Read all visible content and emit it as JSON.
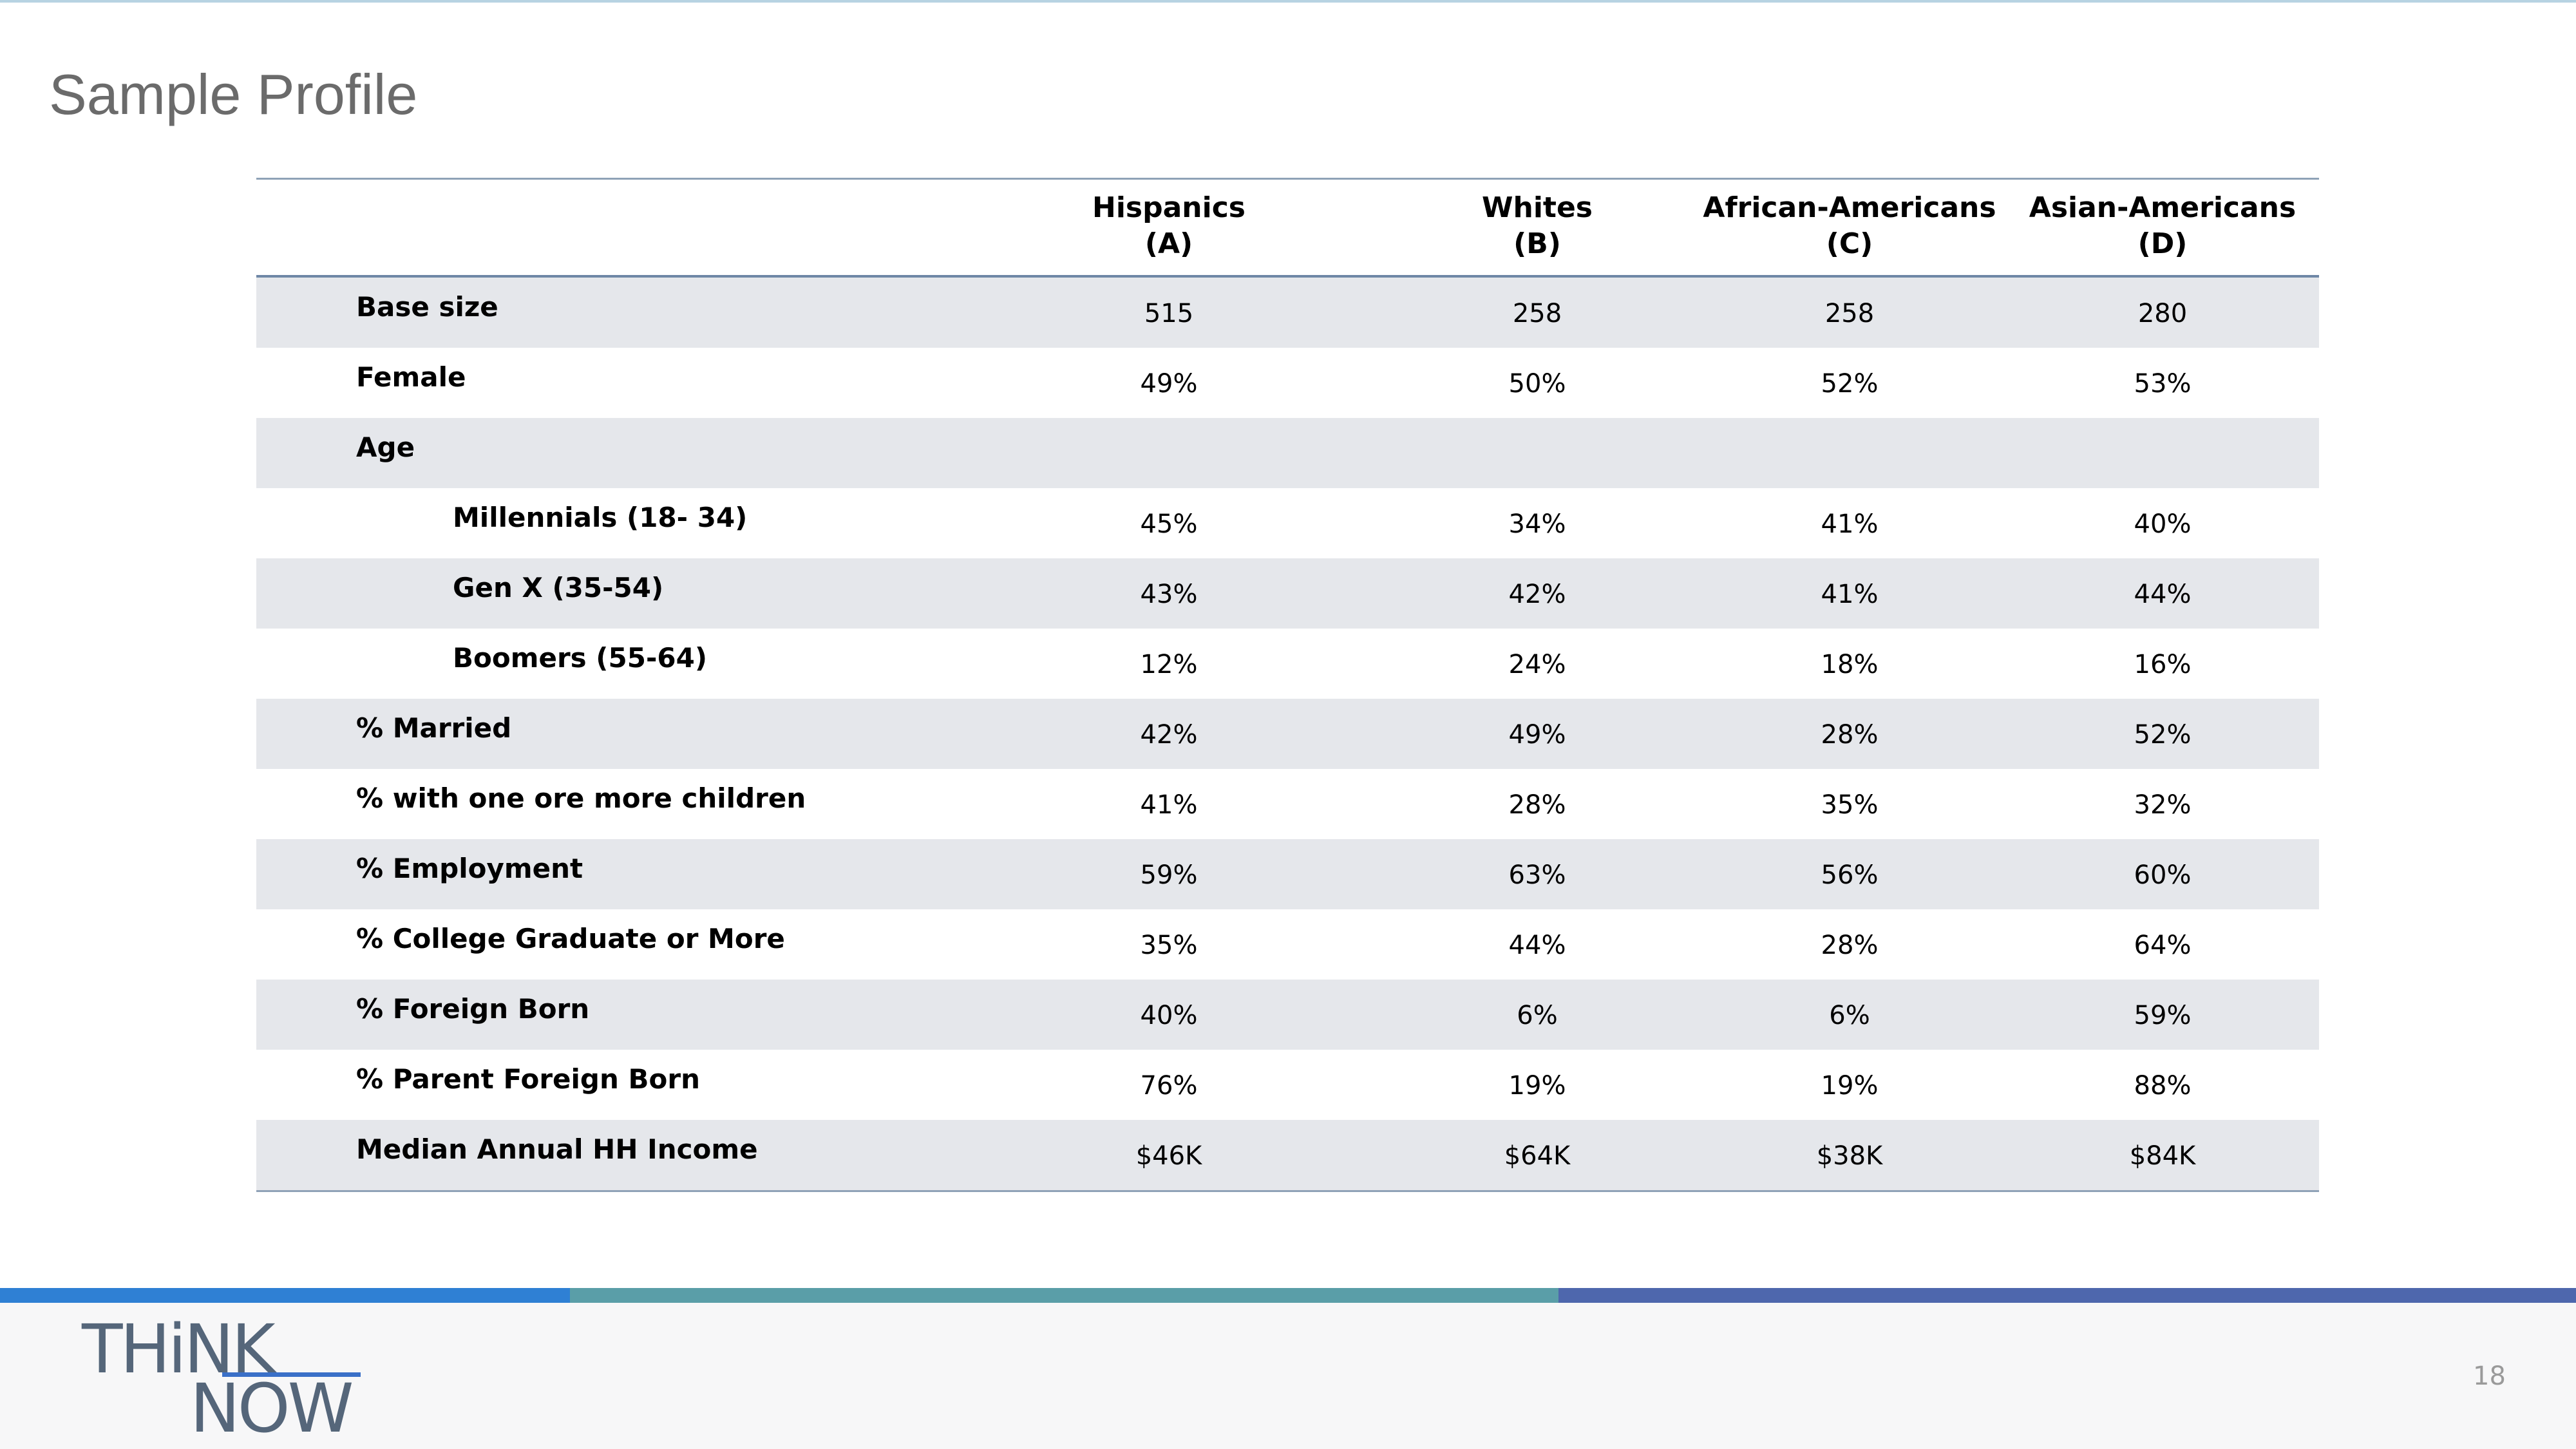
{
  "slide": {
    "title": "Sample Profile",
    "page_number": "18"
  },
  "logo": {
    "line1": "THiNK",
    "line2": "NOW",
    "accent_color": "#3a70c8"
  },
  "colors": {
    "title": "#6b6b6b",
    "row_shade": "#e5e7eb",
    "bar_blue": "#2f80d4",
    "bar_teal": "#5a9ea8",
    "bar_indigo": "#4e67ad"
  },
  "table": {
    "columns": [
      {
        "name": "Hispanics",
        "code": "(A)"
      },
      {
        "name": "Whites",
        "code": "(B)"
      },
      {
        "name": "African-Americans",
        "code": "(C)"
      },
      {
        "name": "Asian-Americans",
        "code": "(D)"
      }
    ],
    "rows": [
      {
        "label": "Base size",
        "values": [
          "515",
          "258",
          "258",
          "280"
        ]
      },
      {
        "label": "Female",
        "values": [
          "49%",
          "50%",
          "52%",
          "53%"
        ]
      },
      {
        "label": "Age",
        "values": [
          "",
          "",
          "",
          ""
        ]
      },
      {
        "label": "Millennials (18- 34)",
        "values": [
          "45%",
          "34%",
          "41%",
          "40%"
        ]
      },
      {
        "label": "Gen X (35-54)",
        "values": [
          "43%",
          "42%",
          "41%",
          "44%"
        ]
      },
      {
        "label": "Boomers (55-64)",
        "values": [
          "12%",
          "24%",
          "18%",
          "16%"
        ]
      },
      {
        "label": "% Married",
        "values": [
          "42%",
          "49%",
          "28%",
          "52%"
        ]
      },
      {
        "label": "% with one ore more children",
        "values": [
          "41%",
          "28%",
          "35%",
          "32%"
        ]
      },
      {
        "label": "% Employment",
        "values": [
          "59%",
          "63%",
          "56%",
          "60%"
        ]
      },
      {
        "label": "% College Graduate or More",
        "values": [
          "35%",
          "44%",
          "28%",
          "64%"
        ]
      },
      {
        "label": "% Foreign Born",
        "values": [
          "40%",
          "6%",
          "6%",
          "59%"
        ]
      },
      {
        "label": "% Parent Foreign Born",
        "values": [
          "76%",
          "19%",
          "19%",
          "88%"
        ]
      },
      {
        "label": "Median Annual HH Income",
        "values": [
          "$46K",
          "$64K",
          "$38K",
          "$84K"
        ]
      }
    ]
  }
}
